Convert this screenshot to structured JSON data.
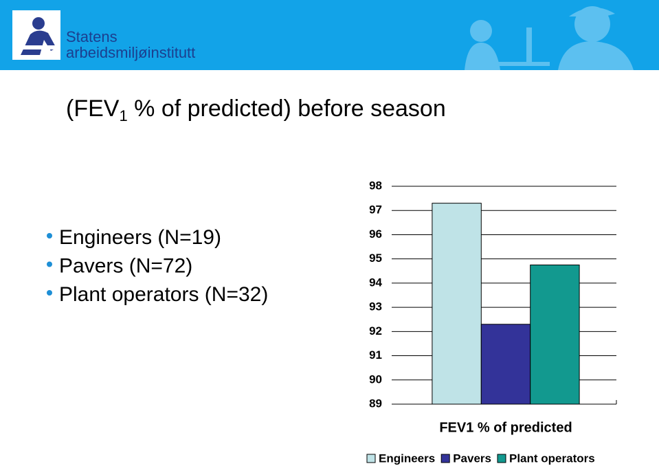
{
  "header": {
    "logo_line1": "Statens",
    "logo_line2": "arbeidsmiljøinstitutt"
  },
  "slide": {
    "title": {
      "prefix": "(FEV",
      "subscript": "1",
      "suffix": " % of predicted) before season"
    },
    "bullets": [
      "Engineers (N=19)",
      "Pavers (N=72)",
      "Plant operators (N=32)"
    ]
  },
  "chart_data": {
    "type": "bar",
    "categories": [
      "FEV1 % of predicted"
    ],
    "series": [
      {
        "name": "Engineers",
        "color": "#bfe3e7",
        "values": [
          97.3
        ]
      },
      {
        "name": "Pavers",
        "color": "#333399",
        "values": [
          92.3
        ]
      },
      {
        "name": "Plant operators",
        "color": "#12998f",
        "values": [
          94.75
        ]
      }
    ],
    "ylim": [
      89,
      98
    ],
    "yticks": [
      89,
      90,
      91,
      92,
      93,
      94,
      95,
      96,
      97,
      98
    ],
    "grid": true,
    "legend": "bottom"
  }
}
